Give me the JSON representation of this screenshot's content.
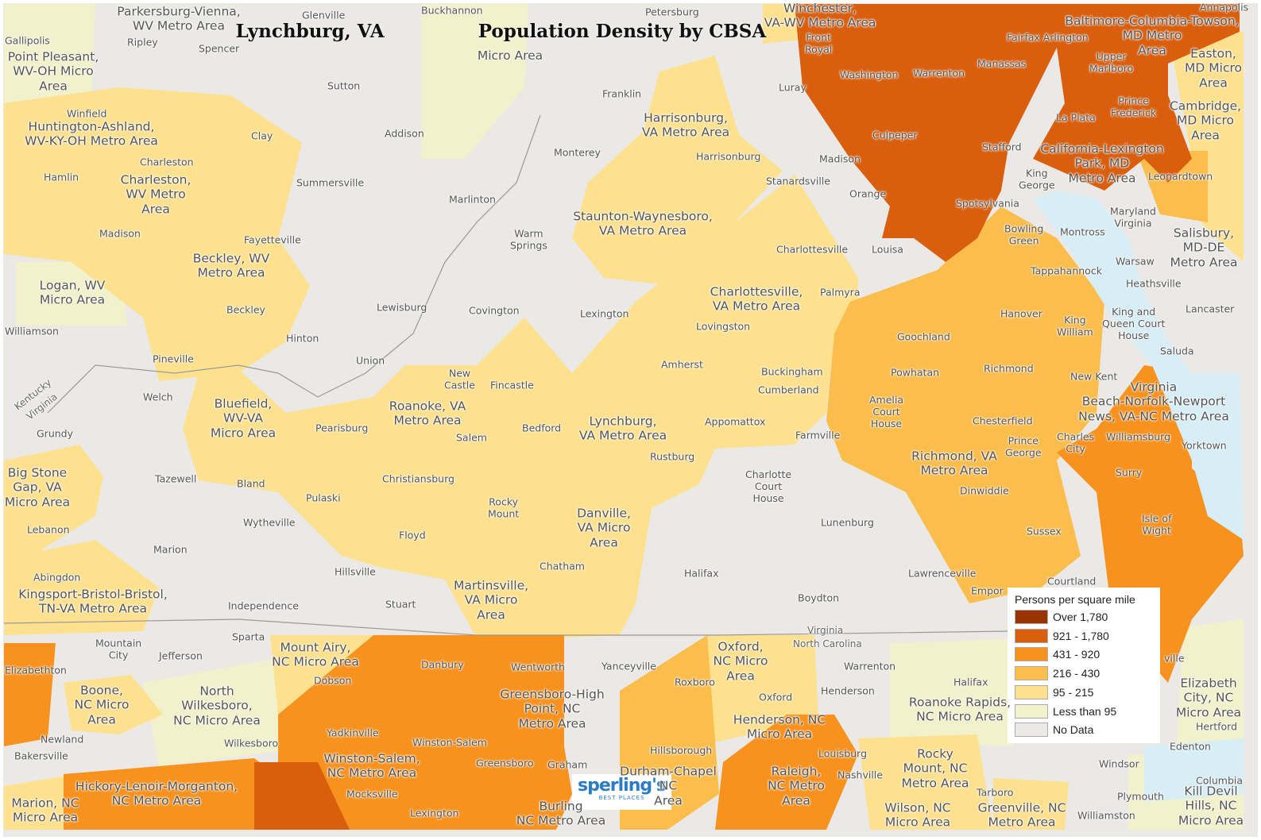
{
  "title": {
    "place": "Lynchburg, VA",
    "subject": "Population Density by CBSA"
  },
  "legend": {
    "title": "Persons per square mile",
    "items": [
      {
        "label": "Over 1,780",
        "color": "#993300"
      },
      {
        "label": "921 - 1,780",
        "color": "#d95f0e"
      },
      {
        "label": "431 - 920",
        "color": "#f7921e"
      },
      {
        "label": "216 - 430",
        "color": "#fbbd4c"
      },
      {
        "label": "95 - 215",
        "color": "#fde18f"
      },
      {
        "label": "Less than 95",
        "color": "#f1f1cc"
      },
      {
        "label": "No Data",
        "color": "#ebe9e6"
      }
    ]
  },
  "logo": {
    "name": "sperling's",
    "tagline": "BEST PLACES"
  },
  "areas": [
    "Parkersburg-Vienna,\nWV Metro Area",
    "Point Pleasant,\nWV-OH Micro\nArea",
    "Huntington-Ashland,\nWV-KY-OH Metro Area",
    "Charleston,\nWV Metro\nArea",
    "Beckley, WV\nMetro Area",
    "Logan, WV\nMicro Area",
    "Bluefield,\nWV-VA\nMicro Area",
    "Big Stone\nGap, VA\nMicro Area",
    "Kingsport-Bristol-Bristol,\nTN-VA Metro Area",
    "Roanoke, VA\nMetro Area",
    "Harrisonburg,\nVA Metro Area",
    "Staunton-Waynesboro,\nVA Metro Area",
    "Charlottesville,\nVA Metro Area",
    "Lynchburg,\nVA Metro Area",
    "Danville,\nVA Micro\nArea",
    "Martinsville,\nVA Micro\nArea",
    "Richmond, VA\nMetro Area",
    "Virginia\nBeach-Norfolk-Newport\nNews, VA-NC Metro Area",
    "California-Lexington\nPark, MD\nMetro Area",
    "Baltimore-Columbia-Towson,\nMD Metro\nArea",
    "Winchester,\nVA-WV Metro Area",
    "Easton,\nMD Micro\nArea",
    "Cambridge,\nMD Micro\nArea",
    "Salisbury,\nMD-DE\nMetro Area",
    "Micro Area",
    "Mount Airy,\nNC Micro Area",
    "Boone,\nNC Micro\nArea",
    "North\nWilkesboro,\nNC Micro Area",
    "Oxford,\nNC Micro\nArea",
    "Greensboro-High\nPoint, NC\nMetro Area",
    "Henderson, NC\nMicro Area",
    "Roanoke Rapids,\nNC Micro Area",
    "Elizabeth\nCity, NC\nMicro Area",
    "Winston-Salem,\nNC Metro Area",
    "Hickory-Lenoir-Morganton,\nNC Metro Area",
    "Durham-Chapel\nNC\nArea",
    "Raleigh,\nNC Metro\nArea",
    "Rocky\nMount, NC\nMetro Area",
    "Marion, NC\nMicro Area",
    "Burling\nNC Metro Area",
    "Wilson, NC\nMicro Area",
    "Greenville, NC\nMetro Area",
    "Kill Devil\nHills, NC\nMicro Area"
  ],
  "places": [
    "Gallipolis",
    "Ripley",
    "Spencer",
    "Glenville",
    "Buckhannon",
    "Petersburg",
    "Sutton",
    "Franklin",
    "Addison",
    "Winfield",
    "Clay",
    "Charleston",
    "Hamlin",
    "Summersville",
    "Monterey",
    "Marlinton",
    "Madison",
    "Fayetteville",
    "Warm\nSprings",
    "Williamson",
    "Beckley",
    "Lewisburg",
    "Covington",
    "Lexington",
    "Hinton",
    "Pineville",
    "Union",
    "Welch",
    "Grundy",
    "New\nCastle",
    "Fincastle",
    "Bedford",
    "Salem",
    "Pearisburg",
    "Christiansburg",
    "Tazewell",
    "Bland",
    "Pulaski",
    "Wytheville",
    "Rocky\nMount",
    "Floyd",
    "Lebanon",
    "Marion",
    "Hillsville",
    "Abingdon",
    "Independence",
    "Stuart",
    "Chatham",
    "Harrisonburg",
    "Luray",
    "Front\nRoyal",
    "Madison",
    "Stanardsville",
    "Orange",
    "Charlottesville",
    "Louisa",
    "Palmyra",
    "Lovingston",
    "Amherst",
    "Buckingham",
    "Cumberland",
    "Appomattox",
    "Farmville",
    "Rustburg",
    "Charlotte\nCourt\nHouse",
    "Lunenburg",
    "Halifax",
    "Boydton",
    "Lawrenceville",
    "Empor",
    "Courtland",
    "Goochland",
    "Powhatan",
    "Amelia\nCourt\nHouse",
    "Hanover",
    "Richmond",
    "Chesterfield",
    "Prince\nGeorge",
    "Dinwiddie",
    "Sussex",
    "Bowling\nGreen",
    "Montross",
    "Tappahannock",
    "Warsaw",
    "Heathsville",
    "King\nWilliam",
    "King and\nQueen Court\nHouse",
    "Lancaster",
    "Saluda",
    "New Kent",
    "Charles\nCity",
    "Williamsburg",
    "Yorktown",
    "Surry",
    "Isle of\nWight",
    "Washington",
    "Warrenton",
    "Manassas",
    "Fairfax Arlington",
    "Upper\nMarlboro",
    "Prince\nFrederick",
    "La Plata",
    "Culpeper",
    "Stafford",
    "King\nGeorge",
    "Spotsylvania",
    "Leonardtown",
    "Maryland\nVirginia",
    "Annapolis",
    "Mountain\nCity",
    "Jefferson",
    "Sparta",
    "Elizabethton",
    "Dobson",
    "Newland",
    "Bakersville",
    "Wilkesboro",
    "Yadkinville",
    "Winston-Salem",
    "Danbury",
    "Wentworth",
    "Yanceyville",
    "Roxboro",
    "Oxford",
    "Henderson",
    "Warrenton",
    "Greensboro",
    "Graham",
    "Hillsborough",
    "Louisburg",
    "Nashville",
    "Mocksville",
    "Lexington",
    "Halifax",
    "Tarboro",
    "Windsor",
    "Plymouth",
    "Williamston",
    "Edenton",
    "Hertford",
    "Columbia",
    "ville"
  ],
  "state_labels": [
    "Kentucky",
    "Virginia",
    "Virginia",
    "North Carolina"
  ]
}
